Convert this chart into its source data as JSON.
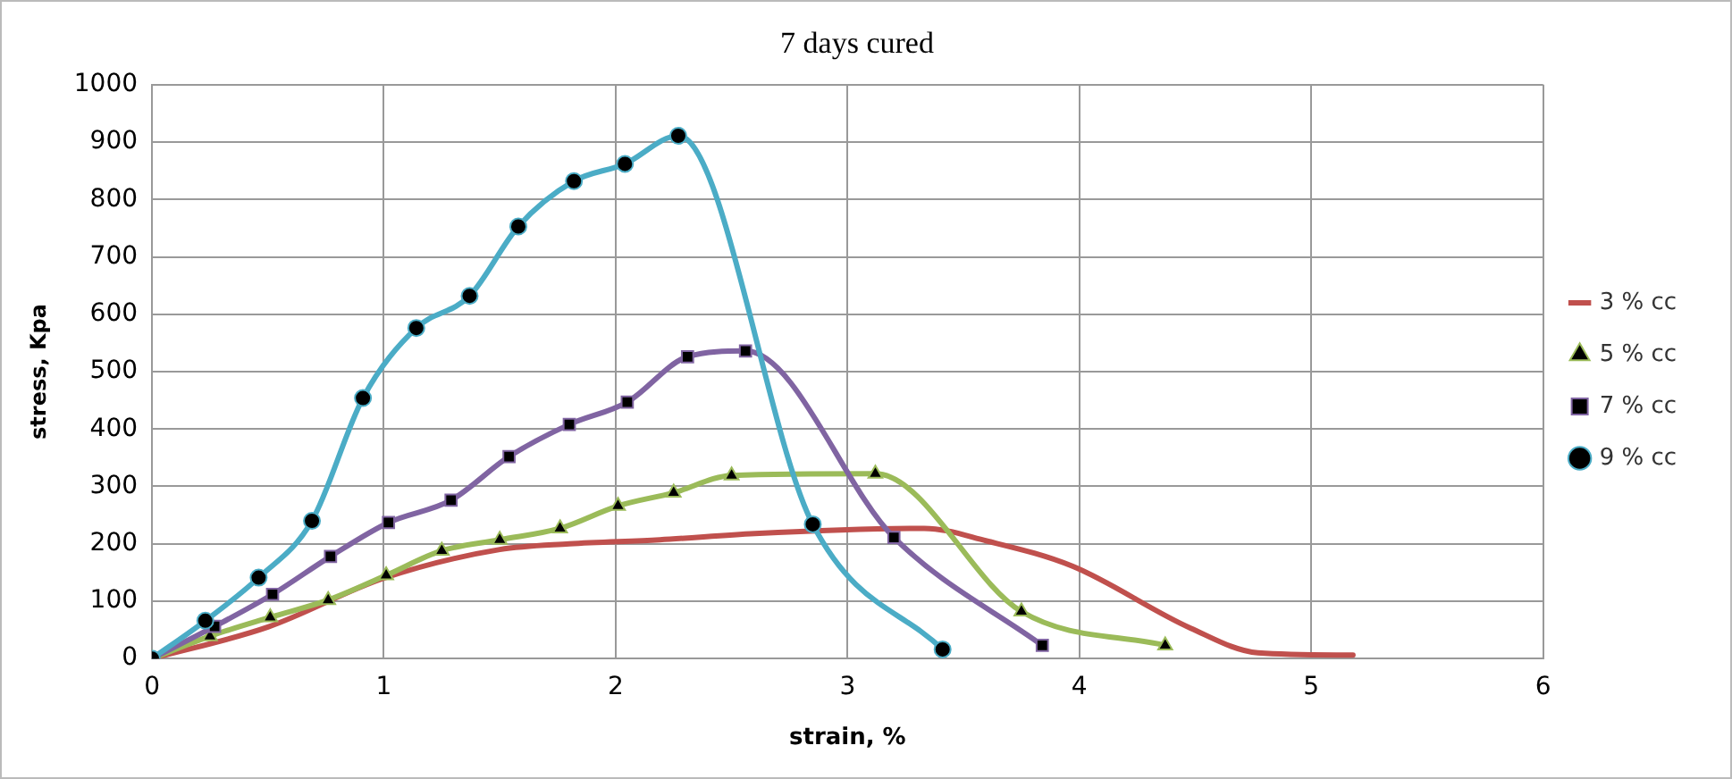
{
  "chart_data": {
    "type": "line",
    "title": "7 days cured",
    "xlabel": "strain, %",
    "ylabel": "stress, Kpa",
    "xlim": [
      0,
      6
    ],
    "xticks": [
      0,
      1,
      2,
      3,
      4,
      5,
      6
    ],
    "ylim": [
      0,
      1000
    ],
    "yticks": [
      0,
      100,
      200,
      300,
      400,
      500,
      600,
      700,
      800,
      900,
      1000
    ],
    "grid": true,
    "legend": "right",
    "line_style": "solid",
    "series": [
      {
        "name": "3 % cc",
        "color": "#c0504d",
        "marker": "none",
        "x": [
          0,
          0.5,
          1,
          1.5,
          1.8,
          2.19,
          2.6,
          3.33,
          3.6,
          3.97,
          4.48,
          4.77,
          5.18
        ],
        "values": [
          0,
          55,
          140,
          190,
          200,
          207,
          218,
          227,
          205,
          161,
          53,
          10,
          6
        ]
      },
      {
        "name": "5 % cc",
        "color": "#9bbb59",
        "marker": "triangle",
        "x": [
          0,
          0.25,
          0.51,
          0.76,
          1.01,
          1.25,
          1.5,
          1.76,
          2.01,
          2.25,
          2.5,
          3.12,
          3.75,
          4.37
        ],
        "values": [
          0,
          39,
          72,
          102,
          145,
          188,
          207,
          227,
          266,
          289,
          319,
          322,
          82,
          23
        ]
      },
      {
        "name": "7 % cc",
        "color": "#8064a2",
        "marker": "square",
        "x": [
          0,
          0.27,
          0.52,
          0.77,
          1.02,
          1.29,
          1.54,
          1.8,
          2.05,
          2.31,
          2.56,
          3.2,
          3.84
        ],
        "values": [
          0,
          56,
          112,
          178,
          237,
          276,
          352,
          408,
          447,
          526,
          536,
          211,
          23
        ]
      },
      {
        "name": "9 % cc",
        "color": "#4bacc6",
        "marker": "circle",
        "x": [
          0,
          0.23,
          0.46,
          0.69,
          0.91,
          1.14,
          1.37,
          1.58,
          1.82,
          2.04,
          2.27,
          2.85,
          3.41
        ],
        "values": [
          0,
          66,
          141,
          240,
          454,
          576,
          632,
          753,
          832,
          862,
          911,
          234,
          16
        ]
      }
    ]
  }
}
